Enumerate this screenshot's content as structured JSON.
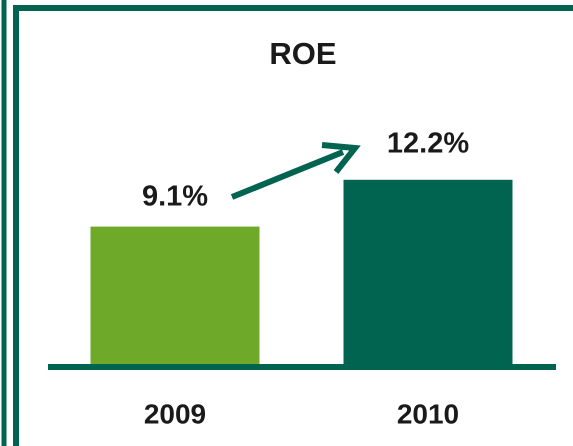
{
  "chart_data": {
    "type": "bar",
    "title": "ROE",
    "categories": [
      "2009",
      "2010"
    ],
    "values": [
      9.1,
      12.2
    ],
    "value_labels": [
      "9.1%",
      "12.2%"
    ],
    "colors": [
      "#6fa92a",
      "#006450"
    ]
  }
}
